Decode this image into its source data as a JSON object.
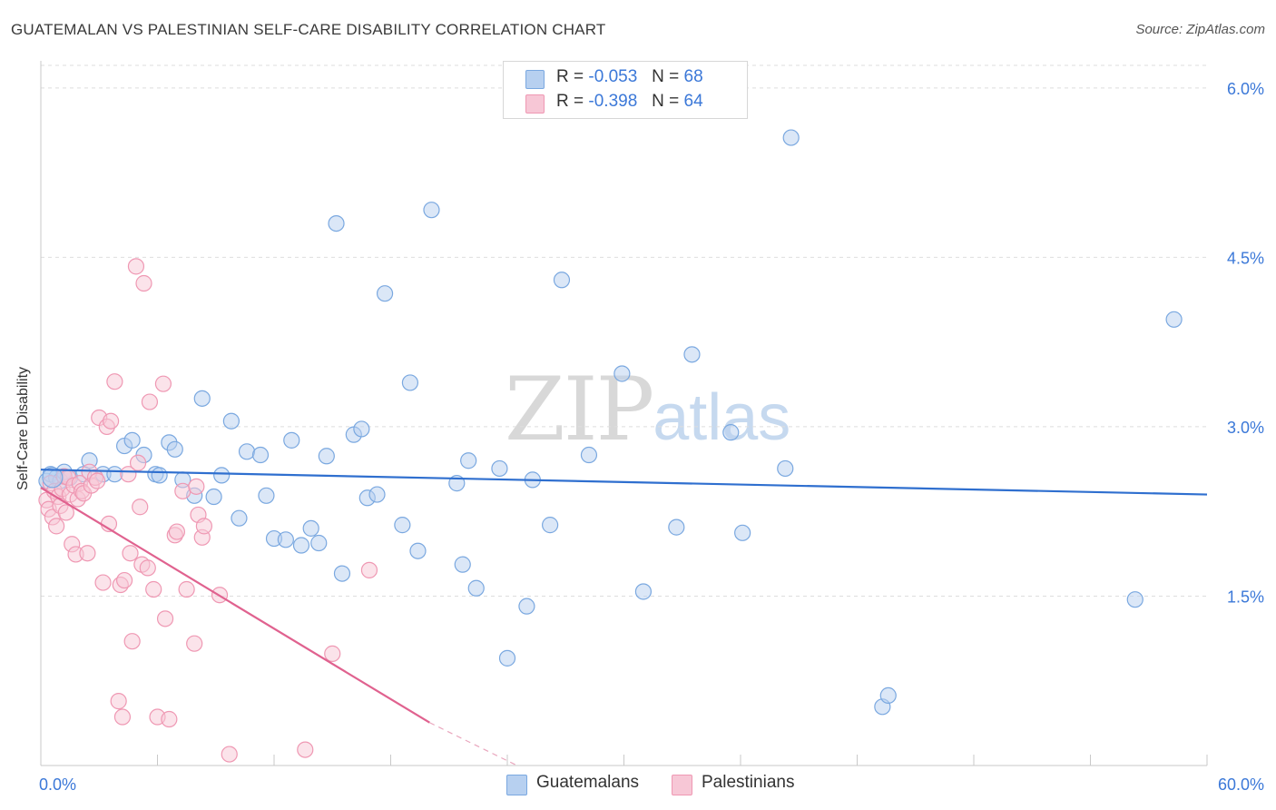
{
  "chart_data": {
    "type": "scatter",
    "title": "GUATEMALAN VS PALESTINIAN SELF-CARE DISABILITY CORRELATION CHART",
    "source": "Source: ZipAtlas.com",
    "xlabel": "",
    "ylabel": "Self-Care Disability",
    "xlim": [
      0,
      60
    ],
    "ylim": [
      0,
      6.2
    ],
    "x_tick_labels": [
      "0.0%",
      "60.0%"
    ],
    "y_ticks": [
      1.5,
      3.0,
      4.5,
      6.0
    ],
    "y_tick_labels": [
      "1.5%",
      "3.0%",
      "4.5%",
      "6.0%"
    ],
    "grid": "horizontal dashed",
    "watermark": {
      "zip": "ZIP",
      "atlas": "atlas"
    },
    "legend": {
      "position": "top-center",
      "rows": [
        {
          "r_label": "R =",
          "r_value": "-0.053",
          "n_label": "N =",
          "n_value": "68"
        },
        {
          "r_label": "R =",
          "r_value": "-0.398",
          "n_label": "N =",
          "n_value": "64"
        }
      ]
    },
    "series": [
      {
        "name": "Guatemalans",
        "color": "#7aa8e0",
        "fill": "#b7d0f0",
        "trend_color": "#2f6fcf",
        "trend": {
          "x0": 0,
          "y0": 2.62,
          "x1": 60,
          "y1": 2.4
        },
        "points": [
          [
            0.3,
            2.52
          ],
          [
            0.5,
            2.58
          ],
          [
            0.8,
            2.55
          ],
          [
            1.0,
            2.52
          ],
          [
            1.2,
            2.6
          ],
          [
            1.5,
            2.55
          ],
          [
            2.2,
            2.58
          ],
          [
            2.5,
            2.7
          ],
          [
            3.2,
            2.58
          ],
          [
            3.8,
            2.58
          ],
          [
            4.3,
            2.83
          ],
          [
            4.7,
            2.88
          ],
          [
            5.3,
            2.75
          ],
          [
            5.9,
            2.58
          ],
          [
            6.1,
            2.57
          ],
          [
            6.6,
            2.86
          ],
          [
            6.9,
            2.8
          ],
          [
            7.3,
            2.53
          ],
          [
            7.9,
            2.39
          ],
          [
            8.3,
            3.25
          ],
          [
            8.9,
            2.38
          ],
          [
            9.3,
            2.57
          ],
          [
            9.8,
            3.05
          ],
          [
            10.2,
            2.19
          ],
          [
            10.6,
            2.78
          ],
          [
            11.3,
            2.75
          ],
          [
            11.6,
            2.39
          ],
          [
            12.0,
            2.01
          ],
          [
            12.6,
            2.0
          ],
          [
            12.9,
            2.88
          ],
          [
            13.4,
            1.95
          ],
          [
            13.9,
            2.1
          ],
          [
            14.3,
            1.97
          ],
          [
            14.7,
            2.74
          ],
          [
            15.2,
            4.8
          ],
          [
            15.5,
            1.7
          ],
          [
            16.1,
            2.93
          ],
          [
            16.5,
            2.98
          ],
          [
            16.8,
            2.37
          ],
          [
            17.3,
            2.4
          ],
          [
            17.7,
            4.18
          ],
          [
            18.6,
            2.13
          ],
          [
            19.0,
            3.39
          ],
          [
            19.4,
            1.9
          ],
          [
            20.1,
            4.92
          ],
          [
            21.4,
            2.5
          ],
          [
            21.7,
            1.78
          ],
          [
            22.0,
            2.7
          ],
          [
            22.4,
            1.57
          ],
          [
            23.6,
            2.63
          ],
          [
            24.0,
            0.95
          ],
          [
            25.0,
            1.41
          ],
          [
            25.3,
            2.53
          ],
          [
            26.2,
            2.13
          ],
          [
            26.8,
            4.3
          ],
          [
            28.2,
            2.75
          ],
          [
            29.9,
            3.47
          ],
          [
            31.0,
            1.54
          ],
          [
            32.7,
            2.11
          ],
          [
            33.5,
            3.64
          ],
          [
            35.5,
            2.95
          ],
          [
            36.1,
            2.06
          ],
          [
            38.3,
            2.63
          ],
          [
            38.6,
            5.56
          ],
          [
            43.3,
            0.52
          ],
          [
            43.6,
            0.62
          ],
          [
            56.3,
            1.47
          ],
          [
            58.3,
            3.95
          ]
        ]
      },
      {
        "name": "Palestinians",
        "color": "#ef98b3",
        "fill": "#f7c7d6",
        "trend_color": "#e0628f",
        "trend": {
          "x0": 0,
          "y0": 2.46,
          "x1": 20,
          "y1": 0.38
        },
        "trend_dashed": {
          "x0": 20,
          "y0": 0.38,
          "x1": 24.5,
          "y1": 0.0
        },
        "points": [
          [
            0.3,
            2.35
          ],
          [
            0.4,
            2.27
          ],
          [
            0.5,
            2.5
          ],
          [
            0.6,
            2.2
          ],
          [
            0.7,
            2.43
          ],
          [
            0.8,
            2.12
          ],
          [
            0.9,
            2.38
          ],
          [
            1.0,
            2.3
          ],
          [
            1.1,
            2.45
          ],
          [
            1.2,
            2.56
          ],
          [
            1.3,
            2.24
          ],
          [
            1.4,
            2.55
          ],
          [
            1.5,
            2.4
          ],
          [
            1.6,
            1.96
          ],
          [
            1.7,
            2.48
          ],
          [
            1.8,
            1.87
          ],
          [
            1.9,
            2.36
          ],
          [
            2.0,
            2.5
          ],
          [
            2.1,
            2.43
          ],
          [
            2.2,
            2.41
          ],
          [
            2.4,
            1.88
          ],
          [
            2.5,
            2.6
          ],
          [
            2.6,
            2.48
          ],
          [
            2.8,
            2.55
          ],
          [
            3.0,
            3.08
          ],
          [
            3.2,
            1.62
          ],
          [
            3.4,
            3.0
          ],
          [
            3.5,
            2.14
          ],
          [
            3.6,
            3.05
          ],
          [
            3.8,
            3.4
          ],
          [
            4.0,
            0.57
          ],
          [
            4.1,
            1.6
          ],
          [
            4.2,
            0.43
          ],
          [
            4.3,
            1.64
          ],
          [
            4.5,
            2.58
          ],
          [
            4.6,
            1.88
          ],
          [
            4.7,
            1.1
          ],
          [
            4.9,
            4.42
          ],
          [
            5.0,
            2.68
          ],
          [
            5.1,
            2.29
          ],
          [
            5.2,
            1.78
          ],
          [
            5.3,
            4.27
          ],
          [
            5.5,
            1.75
          ],
          [
            5.6,
            3.22
          ],
          [
            5.8,
            1.56
          ],
          [
            6.0,
            0.43
          ],
          [
            6.3,
            3.38
          ],
          [
            6.4,
            1.3
          ],
          [
            6.6,
            0.41
          ],
          [
            6.9,
            2.04
          ],
          [
            7.0,
            2.07
          ],
          [
            7.3,
            2.43
          ],
          [
            7.5,
            1.56
          ],
          [
            7.9,
            1.08
          ],
          [
            8.0,
            2.47
          ],
          [
            8.1,
            2.22
          ],
          [
            8.3,
            2.02
          ],
          [
            8.4,
            2.12
          ],
          [
            9.2,
            1.51
          ],
          [
            9.7,
            0.1
          ],
          [
            13.6,
            0.14
          ],
          [
            15.0,
            0.99
          ],
          [
            16.9,
            1.73
          ],
          [
            2.9,
            2.52
          ]
        ]
      }
    ]
  }
}
